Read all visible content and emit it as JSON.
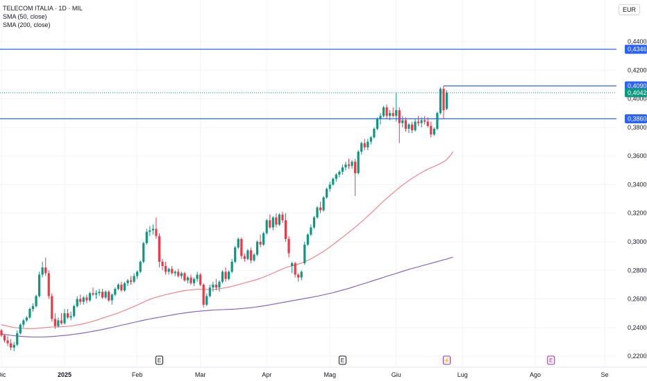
{
  "legend": {
    "title": "TELECOM ITALIA · 1D · MIL",
    "indicator1": "SMA (50, close)",
    "indicator2": "SMA (200, close)"
  },
  "currency": "EUR",
  "colors": {
    "up": "#089981",
    "down": "#f23645",
    "sma50": "#f77c80",
    "sma200": "#7e57c2",
    "hline": "#2962ff",
    "last": "#089981"
  },
  "chart_data": {
    "type": "candlestick",
    "ylim": [
      0.219,
      0.452
    ],
    "y_ticks": [
      "0,4400",
      "0,4200",
      "0,4000",
      "0,3800",
      "0,3600",
      "0,3400",
      "0,3200",
      "0,3000",
      "0,2800",
      "0,2600",
      "0,2400",
      "0,2200"
    ],
    "x_ticks": [
      {
        "label": "Dic",
        "index": 0,
        "bold": false
      },
      {
        "label": "2025",
        "index": 20,
        "bold": true
      },
      {
        "label": "Feb",
        "index": 43,
        "bold": false
      },
      {
        "label": "Mar",
        "index": 63,
        "bold": false
      },
      {
        "label": "Apr",
        "index": 84,
        "bold": false
      },
      {
        "label": "Mag",
        "index": 104,
        "bold": false
      },
      {
        "label": "Giu",
        "index": 125,
        "bold": false
      },
      {
        "label": "Lug",
        "index": 146,
        "bold": false
      },
      {
        "label": "Ago",
        "index": 169,
        "bold": false
      },
      {
        "label": "Se",
        "index": 191,
        "bold": false
      }
    ],
    "events": [
      {
        "index": 50,
        "label": "E",
        "color": "#131722"
      },
      {
        "index": 108,
        "label": "E",
        "color": "#131722"
      },
      {
        "index": 141,
        "label": "⚡",
        "color": "#9c27b0"
      },
      {
        "index": 174,
        "label": "E",
        "color": "#9c27b0"
      }
    ],
    "hlines": [
      {
        "value": 0.4346,
        "label": "0,4346"
      },
      {
        "value": 0.386,
        "label": "0,3860"
      }
    ],
    "ray": {
      "value": 0.409,
      "label": "0,4090",
      "from_index": 140
    },
    "last_price": {
      "value": 0.4042,
      "label": "0,4042"
    },
    "candles": [
      [
        0.238,
        0.239,
        0.2335,
        0.2345
      ],
      [
        0.2345,
        0.235,
        0.2295,
        0.231
      ],
      [
        0.231,
        0.234,
        0.227,
        0.229
      ],
      [
        0.229,
        0.232,
        0.224,
        0.226
      ],
      [
        0.226,
        0.23,
        0.2235,
        0.228
      ],
      [
        0.228,
        0.238,
        0.227,
        0.236
      ],
      [
        0.236,
        0.243,
        0.235,
        0.242
      ],
      [
        0.242,
        0.246,
        0.24,
        0.245
      ],
      [
        0.245,
        0.248,
        0.244,
        0.247
      ],
      [
        0.247,
        0.254,
        0.246,
        0.253
      ],
      [
        0.253,
        0.257,
        0.251,
        0.255
      ],
      [
        0.255,
        0.263,
        0.254,
        0.262
      ],
      [
        0.262,
        0.279,
        0.261,
        0.277
      ],
      [
        0.277,
        0.286,
        0.275,
        0.282
      ],
      [
        0.282,
        0.289,
        0.276,
        0.278
      ],
      [
        0.278,
        0.28,
        0.26,
        0.262
      ],
      [
        0.262,
        0.264,
        0.244,
        0.246
      ],
      [
        0.246,
        0.25,
        0.239,
        0.241
      ],
      [
        0.241,
        0.247,
        0.24,
        0.245
      ],
      [
        0.245,
        0.25,
        0.242,
        0.243
      ],
      [
        0.243,
        0.253,
        0.242,
        0.25
      ],
      [
        0.25,
        0.253,
        0.246,
        0.247
      ],
      [
        0.247,
        0.251,
        0.245,
        0.248
      ],
      [
        0.248,
        0.256,
        0.247,
        0.255
      ],
      [
        0.255,
        0.262,
        0.254,
        0.26
      ],
      [
        0.26,
        0.263,
        0.256,
        0.258
      ],
      [
        0.258,
        0.262,
        0.256,
        0.261
      ],
      [
        0.261,
        0.263,
        0.257,
        0.259
      ],
      [
        0.259,
        0.265,
        0.258,
        0.264
      ],
      [
        0.264,
        0.268,
        0.262,
        0.263
      ],
      [
        0.263,
        0.266,
        0.26,
        0.264
      ],
      [
        0.264,
        0.267,
        0.262,
        0.265
      ],
      [
        0.265,
        0.267,
        0.26,
        0.261
      ],
      [
        0.261,
        0.266,
        0.26,
        0.265
      ],
      [
        0.265,
        0.266,
        0.258,
        0.259
      ],
      [
        0.259,
        0.264,
        0.256,
        0.263
      ],
      [
        0.263,
        0.268,
        0.262,
        0.267
      ],
      [
        0.267,
        0.271,
        0.266,
        0.27
      ],
      [
        0.27,
        0.272,
        0.265,
        0.266
      ],
      [
        0.266,
        0.272,
        0.265,
        0.271
      ],
      [
        0.271,
        0.274,
        0.269,
        0.273
      ],
      [
        0.273,
        0.276,
        0.27,
        0.272
      ],
      [
        0.272,
        0.278,
        0.271,
        0.276
      ],
      [
        0.276,
        0.28,
        0.274,
        0.279
      ],
      [
        0.279,
        0.287,
        0.278,
        0.286
      ],
      [
        0.286,
        0.3,
        0.285,
        0.299
      ],
      [
        0.299,
        0.309,
        0.298,
        0.307
      ],
      [
        0.307,
        0.311,
        0.304,
        0.308
      ],
      [
        0.308,
        0.312,
        0.305,
        0.309
      ],
      [
        0.309,
        0.317,
        0.302,
        0.304
      ],
      [
        0.304,
        0.306,
        0.282,
        0.286
      ],
      [
        0.286,
        0.288,
        0.28,
        0.283
      ],
      [
        0.283,
        0.286,
        0.277,
        0.279
      ],
      [
        0.279,
        0.282,
        0.277,
        0.281
      ],
      [
        0.281,
        0.283,
        0.277,
        0.278
      ],
      [
        0.278,
        0.28,
        0.276,
        0.279
      ],
      [
        0.279,
        0.281,
        0.275,
        0.276
      ],
      [
        0.276,
        0.279,
        0.274,
        0.278
      ],
      [
        0.278,
        0.279,
        0.272,
        0.273
      ],
      [
        0.273,
        0.276,
        0.271,
        0.275
      ],
      [
        0.275,
        0.277,
        0.27,
        0.271
      ],
      [
        0.271,
        0.275,
        0.269,
        0.274
      ],
      [
        0.274,
        0.279,
        0.272,
        0.277
      ],
      [
        0.277,
        0.278,
        0.269,
        0.27
      ],
      [
        0.27,
        0.271,
        0.254,
        0.256
      ],
      [
        0.256,
        0.264,
        0.255,
        0.262
      ],
      [
        0.262,
        0.27,
        0.261,
        0.268
      ],
      [
        0.268,
        0.272,
        0.265,
        0.27
      ],
      [
        0.27,
        0.274,
        0.266,
        0.268
      ],
      [
        0.268,
        0.273,
        0.265,
        0.272
      ],
      [
        0.272,
        0.28,
        0.271,
        0.279
      ],
      [
        0.279,
        0.282,
        0.272,
        0.274
      ],
      [
        0.274,
        0.28,
        0.273,
        0.279
      ],
      [
        0.279,
        0.288,
        0.278,
        0.286
      ],
      [
        0.286,
        0.297,
        0.285,
        0.296
      ],
      [
        0.296,
        0.303,
        0.295,
        0.302
      ],
      [
        0.302,
        0.303,
        0.288,
        0.29
      ],
      [
        0.29,
        0.292,
        0.286,
        0.288
      ],
      [
        0.288,
        0.295,
        0.287,
        0.294
      ],
      [
        0.294,
        0.296,
        0.285,
        0.287
      ],
      [
        0.287,
        0.292,
        0.286,
        0.291
      ],
      [
        0.291,
        0.301,
        0.29,
        0.3
      ],
      [
        0.3,
        0.305,
        0.296,
        0.298
      ],
      [
        0.298,
        0.307,
        0.297,
        0.306
      ],
      [
        0.306,
        0.316,
        0.305,
        0.315
      ],
      [
        0.315,
        0.319,
        0.309,
        0.31
      ],
      [
        0.31,
        0.318,
        0.308,
        0.317
      ],
      [
        0.317,
        0.32,
        0.31,
        0.312
      ],
      [
        0.312,
        0.32,
        0.311,
        0.319
      ],
      [
        0.319,
        0.321,
        0.313,
        0.315
      ],
      [
        0.315,
        0.32,
        0.3,
        0.302
      ],
      [
        0.302,
        0.304,
        0.289,
        0.292
      ],
      [
        0.283,
        0.286,
        0.278,
        0.285
      ],
      [
        0.285,
        0.286,
        0.275,
        0.277
      ],
      [
        0.277,
        0.278,
        0.272,
        0.275
      ],
      [
        0.275,
        0.28,
        0.273,
        0.279
      ],
      [
        0.285,
        0.3,
        0.284,
        0.298
      ],
      [
        0.298,
        0.306,
        0.297,
        0.305
      ],
      [
        0.305,
        0.312,
        0.304,
        0.31
      ],
      [
        0.31,
        0.318,
        0.309,
        0.317
      ],
      [
        0.317,
        0.325,
        0.316,
        0.324
      ],
      [
        0.324,
        0.328,
        0.32,
        0.322
      ],
      [
        0.322,
        0.332,
        0.321,
        0.331
      ],
      [
        0.331,
        0.338,
        0.33,
        0.337
      ],
      [
        0.337,
        0.342,
        0.335,
        0.34
      ],
      [
        0.34,
        0.345,
        0.339,
        0.344
      ],
      [
        0.344,
        0.348,
        0.342,
        0.347
      ],
      [
        0.347,
        0.35,
        0.345,
        0.349
      ],
      [
        0.349,
        0.354,
        0.347,
        0.352
      ],
      [
        0.352,
        0.356,
        0.35,
        0.354
      ],
      [
        0.354,
        0.358,
        0.351,
        0.353
      ],
      [
        0.353,
        0.357,
        0.351,
        0.356
      ],
      [
        0.356,
        0.358,
        0.332,
        0.348
      ],
      [
        0.348,
        0.364,
        0.347,
        0.363
      ],
      [
        0.363,
        0.37,
        0.361,
        0.369
      ],
      [
        0.369,
        0.372,
        0.364,
        0.366
      ],
      [
        0.366,
        0.372,
        0.364,
        0.37
      ],
      [
        0.37,
        0.374,
        0.368,
        0.373
      ],
      [
        0.373,
        0.38,
        0.372,
        0.379
      ],
      [
        0.379,
        0.387,
        0.378,
        0.386
      ],
      [
        0.386,
        0.39,
        0.382,
        0.388
      ],
      [
        0.388,
        0.395,
        0.387,
        0.394
      ],
      [
        0.394,
        0.396,
        0.386,
        0.388
      ],
      [
        0.388,
        0.392,
        0.385,
        0.39
      ],
      [
        0.39,
        0.394,
        0.387,
        0.388
      ],
      [
        0.388,
        0.404,
        0.384,
        0.392
      ],
      [
        0.392,
        0.394,
        0.369,
        0.383
      ],
      [
        0.383,
        0.388,
        0.38,
        0.385
      ],
      [
        0.385,
        0.387,
        0.377,
        0.379
      ],
      [
        0.379,
        0.383,
        0.376,
        0.382
      ],
      [
        0.382,
        0.384,
        0.376,
        0.378
      ],
      [
        0.378,
        0.386,
        0.377,
        0.384
      ],
      [
        0.384,
        0.388,
        0.381,
        0.383
      ],
      [
        0.383,
        0.387,
        0.38,
        0.385
      ],
      [
        0.385,
        0.388,
        0.382,
        0.384
      ],
      [
        0.384,
        0.387,
        0.38,
        0.381
      ],
      [
        0.381,
        0.384,
        0.373,
        0.375
      ],
      [
        0.375,
        0.38,
        0.374,
        0.379
      ],
      [
        0.379,
        0.391,
        0.378,
        0.39
      ],
      [
        0.39,
        0.408,
        0.389,
        0.407
      ],
      [
        0.407,
        0.409,
        0.386,
        0.392
      ],
      [
        0.393,
        0.406,
        0.392,
        0.4042
      ]
    ],
    "sma50": [
      0.242,
      0.2415,
      0.241,
      0.2405,
      0.24,
      0.2398,
      0.2396,
      0.2394,
      0.2393,
      0.2393,
      0.2393,
      0.2394,
      0.2396,
      0.2398,
      0.24,
      0.2402,
      0.2404,
      0.2404,
      0.2405,
      0.2406,
      0.2407,
      0.2409,
      0.2411,
      0.2414,
      0.2418,
      0.2422,
      0.2427,
      0.2432,
      0.2438,
      0.2444,
      0.2451,
      0.2458,
      0.2466,
      0.2473,
      0.248,
      0.2487,
      0.2495,
      0.2503,
      0.2511,
      0.252,
      0.2529,
      0.2538,
      0.2548,
      0.2558,
      0.2568,
      0.2578,
      0.2588,
      0.2597,
      0.2605,
      0.2612,
      0.2618,
      0.2624,
      0.263,
      0.2635,
      0.264,
      0.2645,
      0.265,
      0.2655,
      0.2658,
      0.2661,
      0.2663,
      0.2665,
      0.2667,
      0.2668,
      0.2667,
      0.2666,
      0.2665,
      0.2666,
      0.2668,
      0.2671,
      0.2675,
      0.2679,
      0.2683,
      0.2688,
      0.2694,
      0.27,
      0.2706,
      0.2712,
      0.2718,
      0.2724,
      0.273,
      0.2737,
      0.2745,
      0.2753,
      0.2762,
      0.2771,
      0.278,
      0.279,
      0.28,
      0.281,
      0.2819,
      0.2826,
      0.2832,
      0.2838,
      0.2844,
      0.2851,
      0.286,
      0.287,
      0.2881,
      0.2893,
      0.2906,
      0.2919,
      0.2933,
      0.2948,
      0.2964,
      0.298,
      0.2997,
      0.3014,
      0.3031,
      0.3048,
      0.3066,
      0.3084,
      0.3101,
      0.312,
      0.314,
      0.316,
      0.318,
      0.32,
      0.3221,
      0.3242,
      0.3263,
      0.3284,
      0.3304,
      0.3323,
      0.3342,
      0.3361,
      0.3379,
      0.3396,
      0.3412,
      0.3428,
      0.3443,
      0.3457,
      0.3471,
      0.3484,
      0.3496,
      0.3508,
      0.3518,
      0.3527,
      0.3537,
      0.3548,
      0.356,
      0.3575,
      0.36,
      0.363
    ],
    "sma200": [
      0.2355,
      0.2352,
      0.2349,
      0.2346,
      0.2343,
      0.2341,
      0.2339,
      0.2337,
      0.2336,
      0.2335,
      0.2334,
      0.2334,
      0.2334,
      0.2334,
      0.2335,
      0.2336,
      0.2337,
      0.2339,
      0.2341,
      0.2343,
      0.2345,
      0.2347,
      0.235,
      0.2353,
      0.2356,
      0.2359,
      0.2362,
      0.2366,
      0.237,
      0.2374,
      0.2378,
      0.2382,
      0.2386,
      0.2391,
      0.2396,
      0.2401,
      0.2406,
      0.2411,
      0.2416,
      0.2421,
      0.2426,
      0.2431,
      0.2436,
      0.2441,
      0.2446,
      0.2451,
      0.2456,
      0.246,
      0.2464,
      0.2468,
      0.2472,
      0.2476,
      0.248,
      0.2484,
      0.2488,
      0.2492,
      0.2496,
      0.2499,
      0.2502,
      0.2505,
      0.2508,
      0.2511,
      0.2513,
      0.2515,
      0.2517,
      0.2519,
      0.2521,
      0.2522,
      0.2523,
      0.2524,
      0.2525,
      0.2526,
      0.2527,
      0.2528,
      0.2529,
      0.2531,
      0.2533,
      0.2535,
      0.2537,
      0.2539,
      0.2542,
      0.2545,
      0.2548,
      0.2551,
      0.2555,
      0.2559,
      0.2563,
      0.2567,
      0.2571,
      0.2575,
      0.2579,
      0.2583,
      0.2587,
      0.2591,
      0.2595,
      0.2599,
      0.2603,
      0.2607,
      0.2611,
      0.2615,
      0.2619,
      0.2624,
      0.2629,
      0.2634,
      0.2639,
      0.2644,
      0.265,
      0.2656,
      0.2662,
      0.2668,
      0.2674,
      0.2681,
      0.2688,
      0.2695,
      0.2702,
      0.2709,
      0.2716,
      0.2723,
      0.273,
      0.2737,
      0.2744,
      0.2751,
      0.2758,
      0.2765,
      0.2772,
      0.2779,
      0.2786,
      0.2793,
      0.28,
      0.2807,
      0.2813,
      0.2819,
      0.2825,
      0.2831,
      0.2837,
      0.2843,
      0.2849,
      0.2855,
      0.2861,
      0.2867,
      0.2873,
      0.2879,
      0.2886,
      0.2893
    ]
  }
}
